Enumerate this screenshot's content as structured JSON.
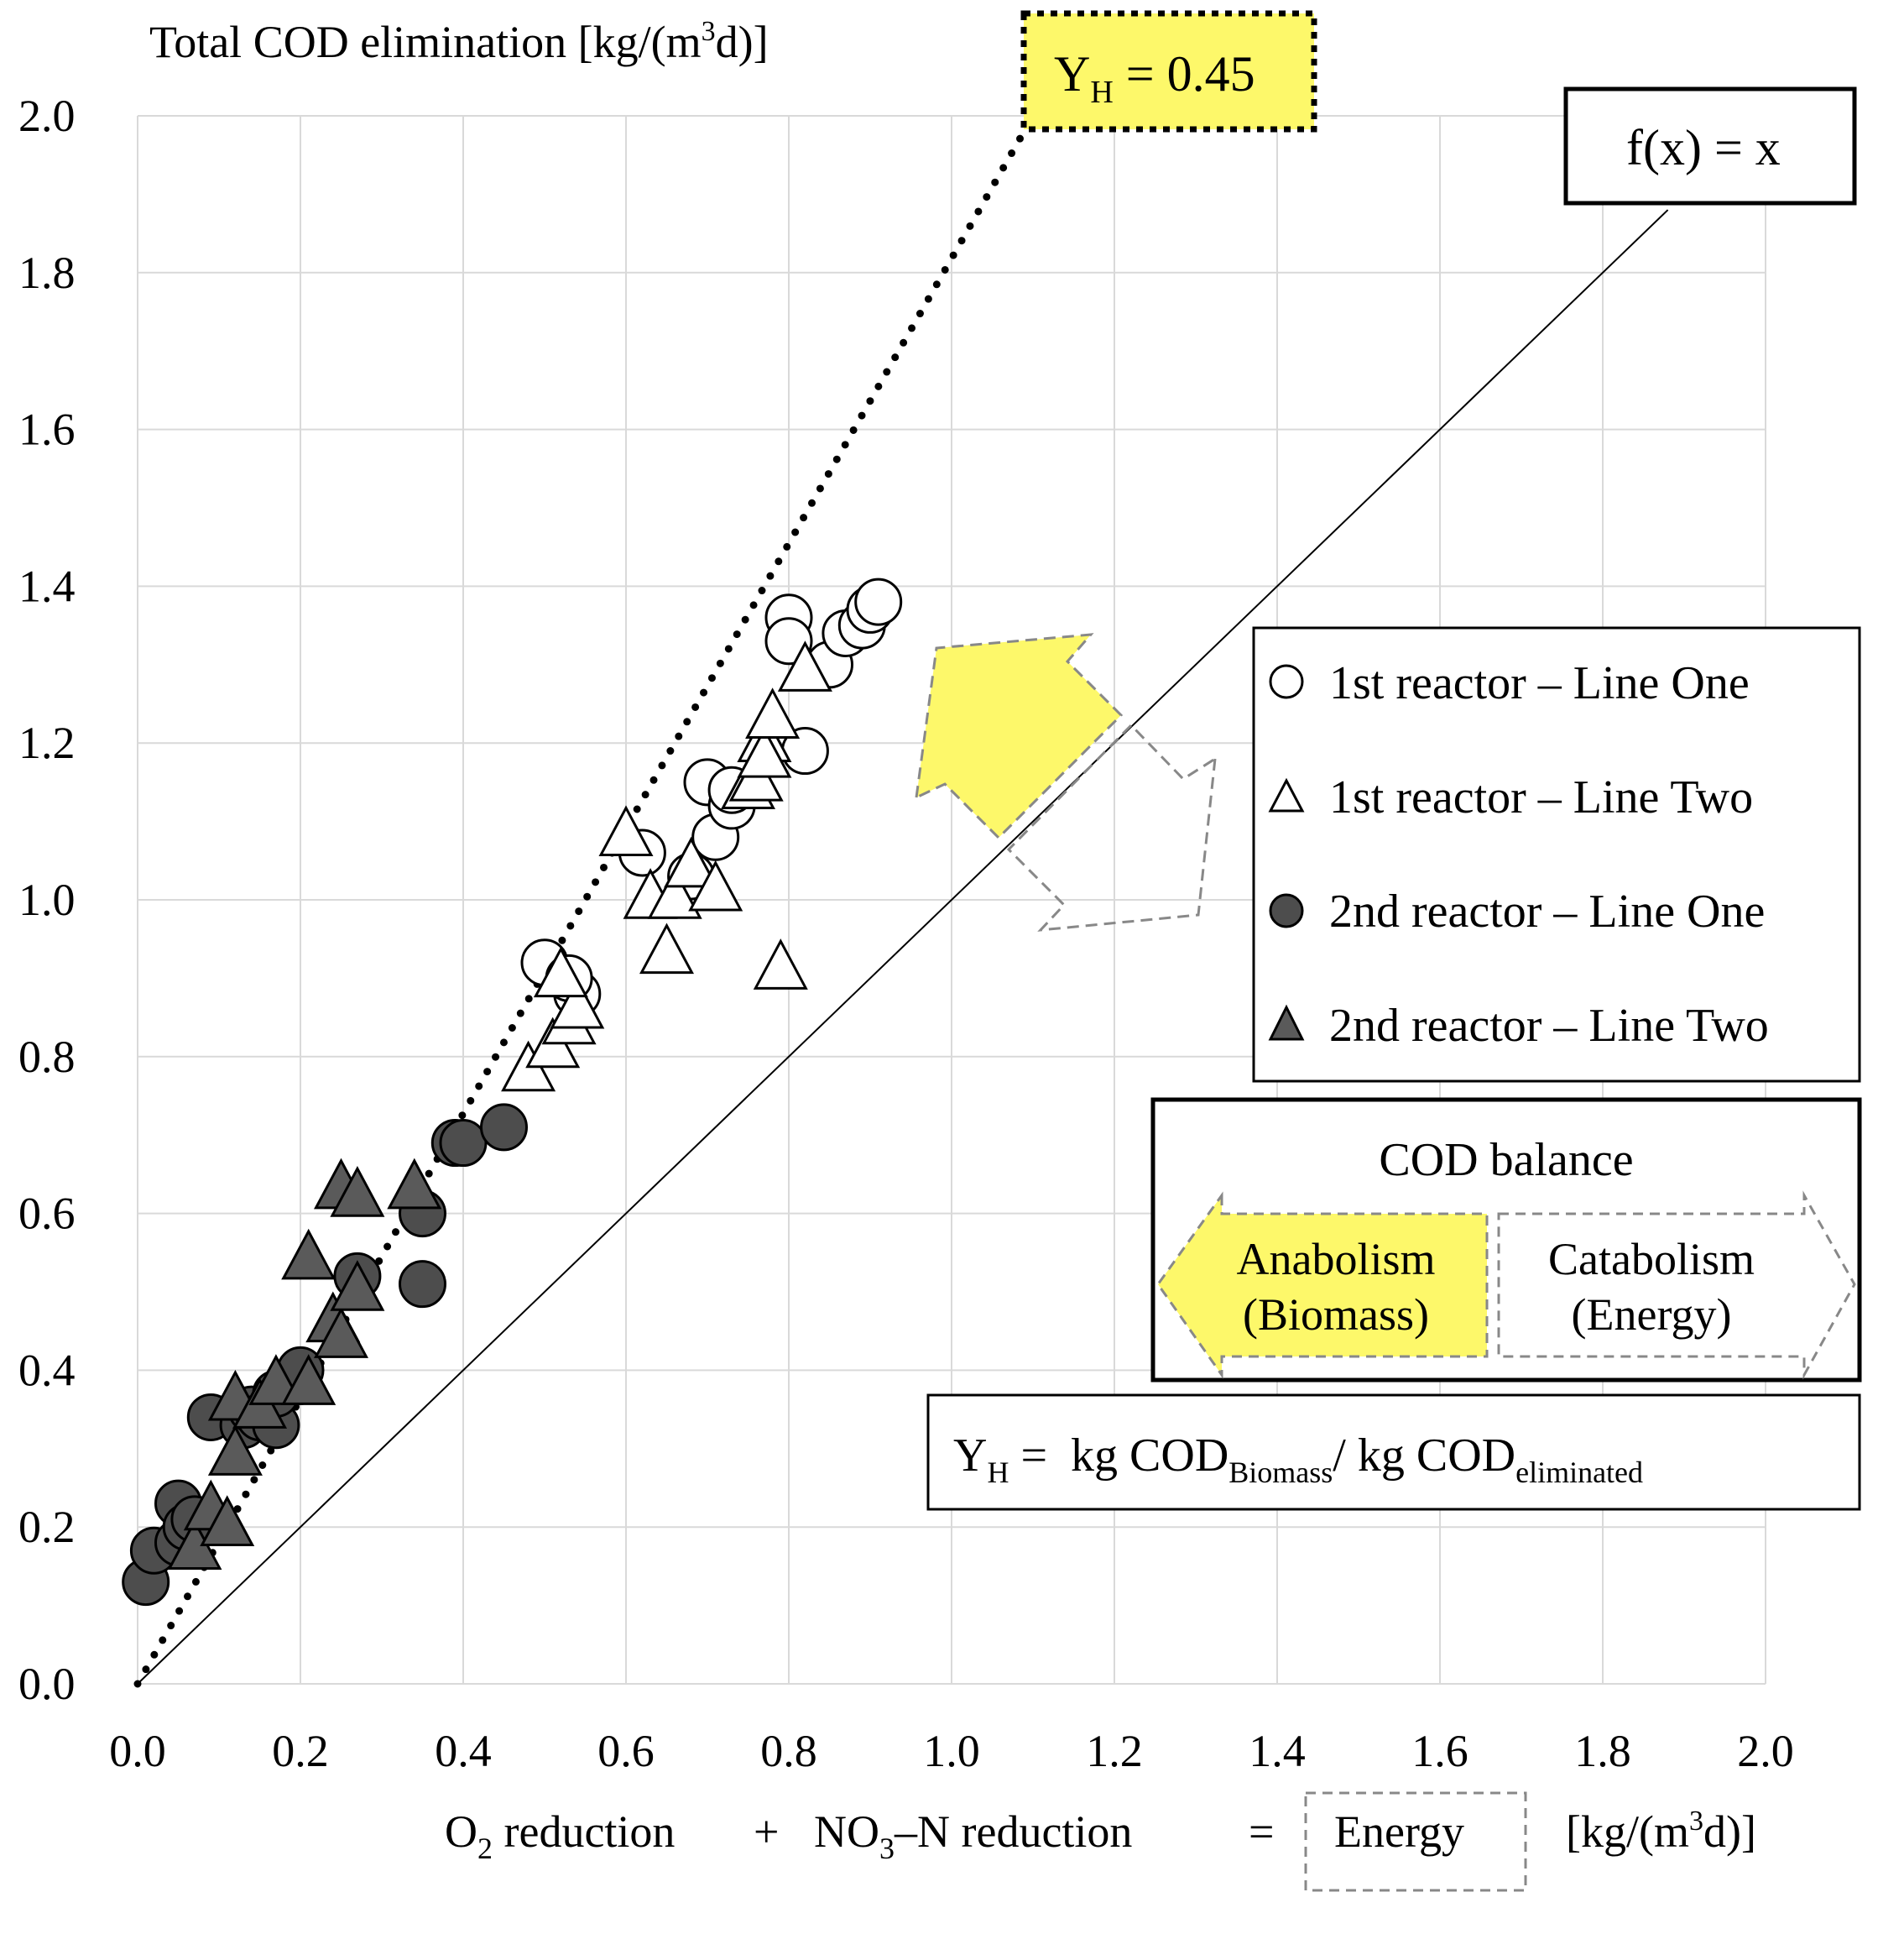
{
  "chart_data": {
    "type": "scatter",
    "ylabel_prefix": "Total COD elimination [kg/(m",
    "ylabel_sup": "3",
    "ylabel_suffix": "d)]",
    "xlabel_parts": {
      "o2": "O",
      "o2_sub": "2",
      "o2_rest": " reduction",
      "plus": "+",
      "no3": "NO",
      "no3_sub": "3",
      "no3_rest": "–N reduction",
      "eq": "=",
      "energy": "Energy",
      "unit_prefix": "[kg/(m",
      "unit_sup": "3",
      "unit_suffix": "d)]"
    },
    "xlim": [
      0.0,
      2.0
    ],
    "ylim": [
      0.0,
      2.0
    ],
    "x_ticks": [
      "0.0",
      "0.2",
      "0.4",
      "0.6",
      "0.8",
      "1.0",
      "1.2",
      "1.4",
      "1.6",
      "1.8",
      "2.0"
    ],
    "y_ticks": [
      "0.0",
      "0.2",
      "0.4",
      "0.6",
      "0.8",
      "1.0",
      "1.2",
      "1.4",
      "1.6",
      "1.8",
      "2.0"
    ],
    "grid": true,
    "series": [
      {
        "name": "1st reactor – Line One",
        "marker": "circle",
        "fill": "#ffffff",
        "points": [
          [
            0.5,
            0.92
          ],
          [
            0.54,
            0.88
          ],
          [
            0.53,
            0.9
          ],
          [
            0.62,
            1.06
          ],
          [
            0.68,
            1.03
          ],
          [
            0.71,
            1.08
          ],
          [
            0.7,
            1.15
          ],
          [
            0.73,
            1.12
          ],
          [
            0.73,
            1.14
          ],
          [
            0.8,
            1.36
          ],
          [
            0.8,
            1.33
          ],
          [
            0.82,
            1.19
          ],
          [
            0.85,
            1.3
          ],
          [
            0.87,
            1.34
          ],
          [
            0.89,
            1.35
          ],
          [
            0.9,
            1.37
          ],
          [
            0.91,
            1.38
          ]
        ]
      },
      {
        "name": "1st reactor – Line Two",
        "marker": "triangle",
        "fill": "#ffffff",
        "points": [
          [
            0.48,
            0.78
          ],
          [
            0.51,
            0.81
          ],
          [
            0.53,
            0.84
          ],
          [
            0.54,
            0.86
          ],
          [
            0.52,
            0.9
          ],
          [
            0.6,
            1.08
          ],
          [
            0.63,
            1.0
          ],
          [
            0.65,
            0.93
          ],
          [
            0.66,
            1.0
          ],
          [
            0.68,
            1.04
          ],
          [
            0.71,
            1.01
          ],
          [
            0.75,
            1.14
          ],
          [
            0.76,
            1.15
          ],
          [
            0.77,
            1.2
          ],
          [
            0.77,
            1.18
          ],
          [
            0.78,
            1.23
          ],
          [
            0.79,
            0.91
          ],
          [
            0.82,
            1.29
          ]
        ]
      },
      {
        "name": "2nd reactor – Line One",
        "marker": "circle",
        "fill": "#4d4d4d",
        "points": [
          [
            0.01,
            0.13
          ],
          [
            0.02,
            0.17
          ],
          [
            0.05,
            0.18
          ],
          [
            0.05,
            0.23
          ],
          [
            0.06,
            0.2
          ],
          [
            0.07,
            0.21
          ],
          [
            0.09,
            0.34
          ],
          [
            0.13,
            0.33
          ],
          [
            0.14,
            0.35
          ],
          [
            0.15,
            0.34
          ],
          [
            0.17,
            0.33
          ],
          [
            0.17,
            0.37
          ],
          [
            0.2,
            0.4
          ],
          [
            0.27,
            0.52
          ],
          [
            0.35,
            0.6
          ],
          [
            0.35,
            0.51
          ],
          [
            0.39,
            0.69
          ],
          [
            0.4,
            0.69
          ],
          [
            0.45,
            0.71
          ]
        ]
      },
      {
        "name": "2nd reactor – Line Two",
        "marker": "triangle",
        "fill": "#5a5a5a",
        "points": [
          [
            0.07,
            0.17
          ],
          [
            0.09,
            0.22
          ],
          [
            0.11,
            0.2
          ],
          [
            0.12,
            0.29
          ],
          [
            0.12,
            0.36
          ],
          [
            0.15,
            0.35
          ],
          [
            0.17,
            0.38
          ],
          [
            0.21,
            0.38
          ],
          [
            0.21,
            0.54
          ],
          [
            0.24,
            0.46
          ],
          [
            0.25,
            0.44
          ],
          [
            0.25,
            0.63
          ],
          [
            0.27,
            0.62
          ],
          [
            0.27,
            0.5
          ],
          [
            0.34,
            0.63
          ]
        ]
      }
    ],
    "reference_lines": [
      {
        "name": "f(x) = x",
        "from": [
          0.0,
          0.0
        ],
        "to": [
          1.88,
          1.88
        ],
        "style": "solid"
      },
      {
        "name": "Y_H = 0.45",
        "from": [
          0.0,
          0.0
        ],
        "to": [
          1.1,
          2.0
        ],
        "style": "dotted"
      }
    ],
    "annotations": {
      "fx_box": "f(x) = x",
      "yh_box": {
        "main": "Y",
        "sub": "H",
        "rest": " = 0.45",
        "color": "#fdf86a"
      },
      "legend_title": "COD balance",
      "anabolism": [
        "Anabolism",
        "(Biomass)"
      ],
      "catabolism": [
        "Catabolism",
        "(Energy)"
      ],
      "yh_formula": {
        "y": "Y",
        "y_sub": "H",
        "eq": " =  kg COD",
        "sub1": "Biomass",
        "mid": "/ kg COD",
        "sub2": "eliminated"
      },
      "arrow_yellow": "#fdf86a"
    }
  }
}
